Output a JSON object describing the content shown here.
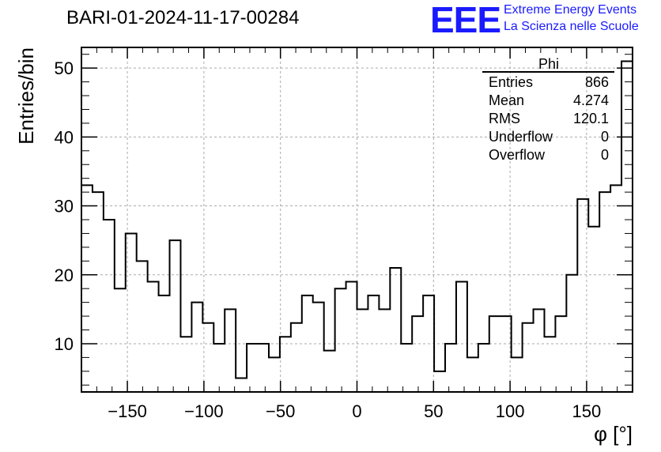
{
  "header": {
    "title": "BARI-01-2024-11-17-00284",
    "logo_text": "EEE",
    "brand_line1": "Extreme Energy Events",
    "brand_line2": "La Scienza nelle Scuole",
    "brand_color": "#1a1aff"
  },
  "stats_box": {
    "name": "Phi",
    "rows": [
      {
        "label": "Entries",
        "value": "866"
      },
      {
        "label": "Mean",
        "value": "4.274"
      },
      {
        "label": "RMS",
        "value": "120.1"
      },
      {
        "label": "Underflow",
        "value": "0"
      },
      {
        "label": "Overflow",
        "value": "0"
      }
    ]
  },
  "chart_data": {
    "type": "histogram",
    "xlabel": "φ [°]",
    "ylabel": "Entries/bin",
    "xlim": [
      -180,
      180
    ],
    "ylim": [
      3,
      53
    ],
    "bin_width": 7.2,
    "grid": true,
    "legend_position": "top-right",
    "x_ticks": [
      -150,
      -100,
      -50,
      0,
      50,
      100,
      150
    ],
    "x_tick_labels": [
      "−150",
      "−100",
      "−50",
      "0",
      "50",
      "100",
      "150"
    ],
    "y_ticks": [
      10,
      20,
      30,
      40,
      50
    ],
    "y_tick_labels": [
      "10",
      "20",
      "30",
      "40",
      "50"
    ],
    "values": [
      33,
      32,
      28,
      18,
      26,
      22,
      19,
      17,
      25,
      11,
      16,
      13,
      10,
      15,
      5,
      10,
      10,
      8,
      11,
      13,
      17,
      16,
      9,
      18,
      19,
      15,
      17,
      15,
      21,
      10,
      14,
      17,
      6,
      10,
      19,
      8,
      10,
      14,
      14,
      8,
      13,
      15,
      11,
      14,
      20,
      31,
      27,
      32,
      33,
      51
    ]
  }
}
